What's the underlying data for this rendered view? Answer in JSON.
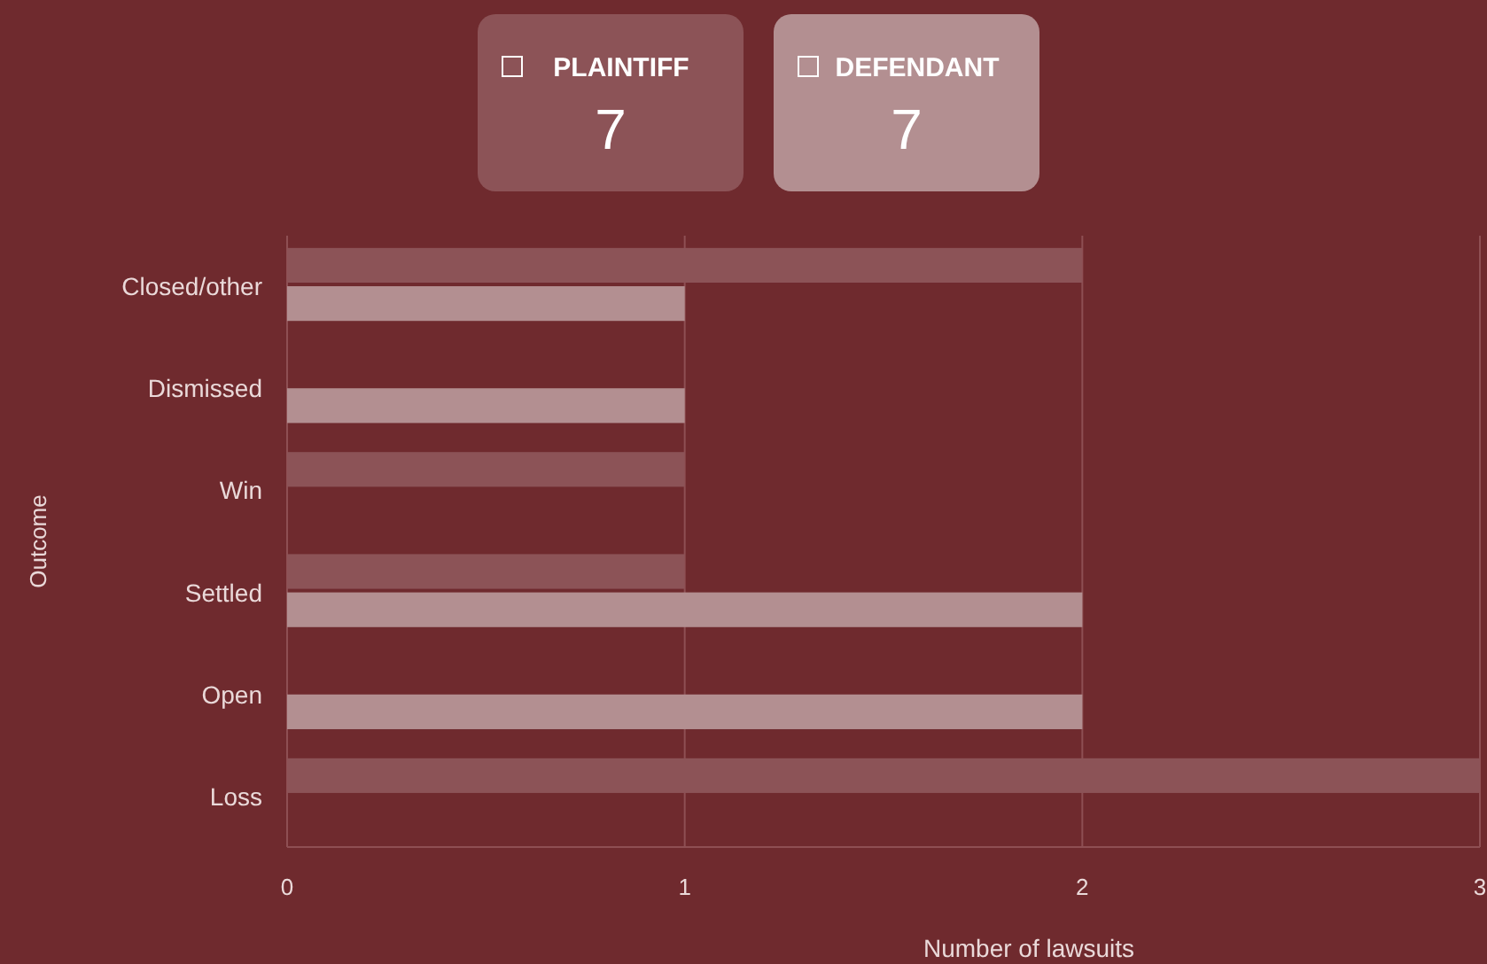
{
  "chart_data": {
    "type": "bar",
    "orientation": "horizontal",
    "xlabel": "Number of lawsuits",
    "ylabel": "Outcome",
    "categories": [
      "Closed/other",
      "Dismissed",
      "Win",
      "Settled",
      "Open",
      "Loss"
    ],
    "series": [
      {
        "name": "PLAINTIFF",
        "color": "#8c5357",
        "values": [
          2,
          0,
          1,
          1,
          0,
          3
        ]
      },
      {
        "name": "DEFENDANT",
        "color": "#b38f91",
        "values": [
          1,
          1,
          0,
          2,
          2,
          0
        ]
      }
    ],
    "annotations": [
      "7",
      "7"
    ],
    "xlim": [
      0,
      3
    ],
    "xticks": [
      0,
      1,
      2,
      3
    ],
    "grid": "x",
    "legend": "top"
  }
}
